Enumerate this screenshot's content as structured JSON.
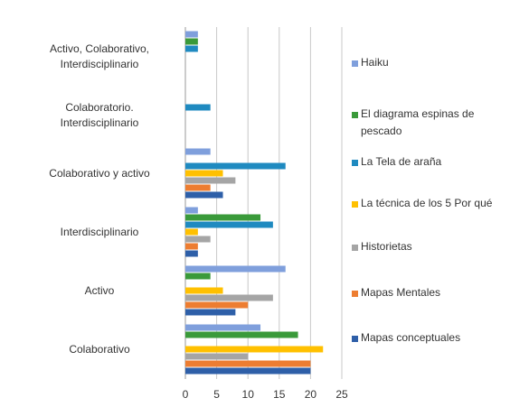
{
  "chart_data": {
    "type": "hbar",
    "categories": [
      "Activo, Colaborativo,\nInterdisciplinario",
      "Colaboratorio.\nInterdisciplinario",
      "Colaborativo y activo",
      "Interdisciplinario",
      "Activo",
      "Colaborativo"
    ],
    "series": [
      {
        "name": "Haiku",
        "color": "#7f9fdc",
        "values": [
          2,
          0,
          4,
          2,
          16,
          12
        ]
      },
      {
        "name": "El diagrama espinas de pescado",
        "color": "#3a9a3a",
        "values": [
          2,
          0,
          0,
          12,
          4,
          18
        ]
      },
      {
        "name": "La Tela de araña",
        "color": "#1f8ac0",
        "values": [
          2,
          4,
          16,
          14,
          0,
          0
        ]
      },
      {
        "name": "La técnica de los 5 Por qué",
        "color": "#ffc000",
        "values": [
          0,
          0,
          6,
          2,
          6,
          22
        ]
      },
      {
        "name": "Historietas",
        "color": "#a5a5a5",
        "values": [
          0,
          0,
          8,
          4,
          14,
          10
        ]
      },
      {
        "name": "Mapas Mentales",
        "color": "#ed7d31",
        "values": [
          0,
          0,
          4,
          2,
          10,
          20
        ]
      },
      {
        "name": "Mapas conceptuales",
        "color": "#2e5fa8",
        "values": [
          0,
          0,
          6,
          2,
          8,
          20
        ]
      }
    ],
    "xlim": [
      0,
      25
    ],
    "xticks": [
      0,
      5,
      10,
      15,
      20,
      25
    ],
    "grid": true,
    "legend": "right"
  }
}
